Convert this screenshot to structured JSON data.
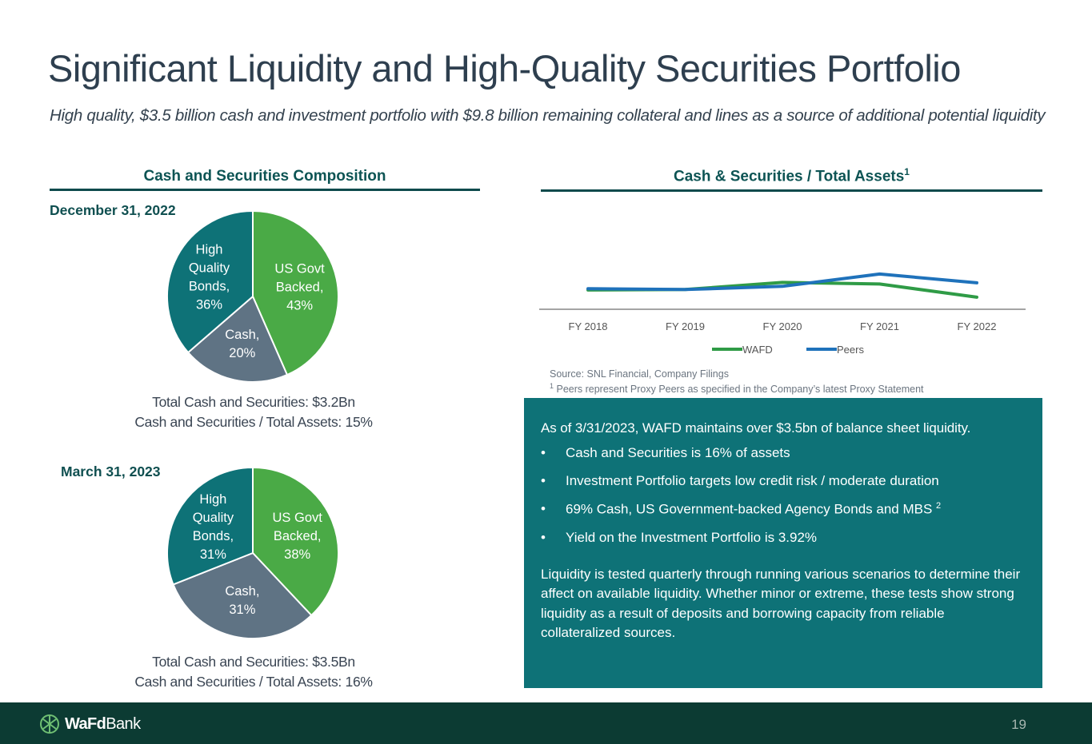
{
  "title": "Significant Liquidity and High-Quality Securities Portfolio",
  "subtitle": "High quality, $3.5 billion cash and investment portfolio with $9.8 billion remaining collateral and lines as a source of additional potential liquidity",
  "left_header": "Cash and Securities Composition",
  "right_header": "Cash & Securities / Total Assets",
  "right_header_sup": "1",
  "colors": {
    "green": "#4aaa46",
    "slate": "#5f7384",
    "teal": "#0e7277",
    "peers_line": "#1f72bb",
    "wafd_line": "#2f9b46",
    "dark_green": "#0c3b33"
  },
  "chart_data": [
    {
      "type": "pie",
      "date_label": "December 31, 2022",
      "slices": [
        {
          "label_lines": [
            "US Govt",
            "Backed,",
            "43%"
          ],
          "value": 43,
          "color": "#4aaa46"
        },
        {
          "label_lines": [
            "Cash,",
            "20%"
          ],
          "value": 20,
          "color": "#5f7384"
        },
        {
          "label_lines": [
            "High",
            "Quality",
            "Bonds,",
            "36%"
          ],
          "value": 36,
          "color": "#0e7277"
        }
      ],
      "totals": [
        "Total Cash and Securities: $3.2Bn",
        "Cash and Securities / Total Assets: 15%"
      ]
    },
    {
      "type": "pie",
      "date_label": "March 31, 2023",
      "slices": [
        {
          "label_lines": [
            "US Govt",
            "Backed,",
            "38%"
          ],
          "value": 38,
          "color": "#4aaa46"
        },
        {
          "label_lines": [
            "Cash,",
            "31%"
          ],
          "value": 31,
          "color": "#5f7384"
        },
        {
          "label_lines": [
            "High",
            "Quality",
            "Bonds,",
            "31%"
          ],
          "value": 31,
          "color": "#0e7277"
        }
      ],
      "totals": [
        "Total Cash and Securities: $3.5Bn",
        "Cash and Securities / Total Assets: 16%"
      ]
    },
    {
      "type": "line",
      "categories": [
        "FY 2018",
        "FY 2019",
        "FY 2020",
        "FY 2021",
        "FY 2022"
      ],
      "series": [
        {
          "name": "WAFD",
          "values": [
            14.3,
            14.5,
            17.6,
            16.9,
            11.2
          ],
          "color": "#2f9b46"
        },
        {
          "name": "Peers",
          "values": [
            14.9,
            14.5,
            15.9,
            21.2,
            17.4
          ],
          "color": "#1f72bb"
        }
      ],
      "ylim": [
        6,
        28
      ],
      "legend": "bottom",
      "grid": false
    }
  ],
  "source_line1": "Source: SNL Financial, Company Filings",
  "source_sup": "1",
  "source_line2": " Peers represent Proxy Peers as specified in the Company’s latest Proxy Statement",
  "panel": {
    "lead": "As of 3/31/2023, WAFD maintains over $3.5bn of balance sheet liquidity.",
    "bullets": [
      "Cash and Securities is 16% of assets",
      "Investment Portfolio targets low credit risk / moderate duration",
      "69% Cash, US Government-backed Agency Bonds and MBS",
      "Yield on the Investment Portfolio is 3.92%"
    ],
    "bullet3_sup": "2",
    "para": "Liquidity is tested quarterly through running various scenarios to determine their affect on available liquidity.   Whether minor or extreme, these tests show strong liquidity as a result of deposits and borrowing capacity from reliable collateralized sources."
  },
  "footer": {
    "logo_bold": "WaFd",
    "logo_rest": "Bank",
    "page_number": "19",
    "logo_icon": "wafd-knot-icon"
  }
}
